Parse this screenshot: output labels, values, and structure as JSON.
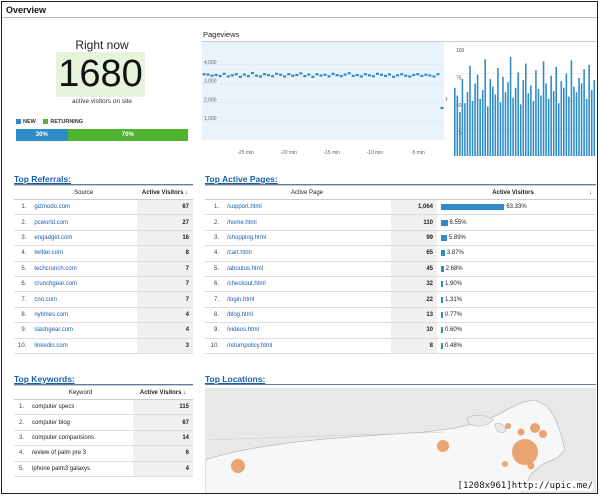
{
  "header": {
    "title": "Overview"
  },
  "right_now": {
    "title": "Right now",
    "count": "1680",
    "caption": "active visitors on site",
    "legend_new": "NEW",
    "legend_returning": "RETURNING",
    "new_pct_label": "30%",
    "returning_pct_label": "70%",
    "new_fraction": 0.3,
    "colors": {
      "new": "#2f8cc8",
      "returning": "#50b432"
    }
  },
  "pageviews": {
    "title": "Pageviews",
    "arrow": "›",
    "chart_data": [
      {
        "type": "line",
        "x_tick_labels": [
          "-25 min",
          "-20 min",
          "-15 min",
          "-10 min",
          "-5 min"
        ],
        "y_tick_labels": [
          "4,000",
          "3,000",
          "2,000",
          "1,000"
        ],
        "ylim": [
          0,
          5000
        ],
        "values": [
          3500,
          3480,
          3420,
          3460,
          3400,
          3520,
          3380,
          3440,
          3500,
          3360,
          3480,
          3400,
          3560,
          3420,
          3380,
          3500,
          3450,
          3390,
          3520,
          3470,
          3380,
          3500,
          3420,
          3460,
          3540,
          3400,
          3480,
          3360,
          3500,
          3430,
          3470,
          3390,
          3520,
          3450,
          3400,
          3480,
          3550,
          3410,
          3460,
          3380,
          3500,
          3440,
          3390,
          3520,
          3470,
          3410,
          3490,
          3360,
          3440,
          3500,
          3420,
          3380,
          3460,
          3500,
          3410,
          3470,
          3430,
          3380,
          3500,
          1700
        ]
      },
      {
        "type": "bar",
        "y_tick_labels": [
          "100",
          "75",
          "50",
          "25"
        ],
        "ylim": [
          0,
          100
        ],
        "values": [
          62,
          55,
          40,
          70,
          48,
          58,
          82,
          50,
          66,
          74,
          52,
          60,
          88,
          45,
          70,
          63,
          56,
          80,
          49,
          72,
          58,
          67,
          90,
          53,
          62,
          76,
          47,
          69,
          84,
          57,
          64,
          50,
          78,
          61,
          55,
          86,
          66,
          52,
          73,
          59,
          81,
          48,
          68,
          62,
          75,
          54,
          87,
          63,
          58,
          71,
          66,
          79,
          52,
          83,
          60,
          69
        ]
      }
    ]
  },
  "referrals": {
    "title": "Top Referrals:",
    "col_source": "Source",
    "col_visitors": "Active Visitors ↓",
    "rows": [
      {
        "n": "1.",
        "src": "gizmodo.com",
        "v": "67"
      },
      {
        "n": "2.",
        "src": "pcworld.com",
        "v": "27"
      },
      {
        "n": "3.",
        "src": "engadget.com",
        "v": "16"
      },
      {
        "n": "4.",
        "src": "twitter.com",
        "v": "8"
      },
      {
        "n": "5.",
        "src": "techcrunch.com",
        "v": "7"
      },
      {
        "n": "6.",
        "src": "crunchgear.com",
        "v": "7"
      },
      {
        "n": "7.",
        "src": "cnn.com",
        "v": "7"
      },
      {
        "n": "8.",
        "src": "nytimes.com",
        "v": "4"
      },
      {
        "n": "9.",
        "src": "slashgear.com",
        "v": "4"
      },
      {
        "n": "10.",
        "src": "linkedin.com",
        "v": "3"
      }
    ]
  },
  "active_pages": {
    "title": "Top Active Pages:",
    "col_page": "Active Page",
    "col_visitors": "Active Visitors",
    "sort_icon": "↓",
    "rows": [
      {
        "n": "1.",
        "page": "/support.html",
        "v": "1,064",
        "pct": "63.33%",
        "frac": 0.6333
      },
      {
        "n": "2.",
        "page": "/home.html",
        "v": "110",
        "pct": "6.55%",
        "frac": 0.0655
      },
      {
        "n": "3.",
        "page": "/shopping.html",
        "v": "99",
        "pct": "5.89%",
        "frac": 0.0589
      },
      {
        "n": "4.",
        "page": "/cart.html",
        "v": "65",
        "pct": "3.87%",
        "frac": 0.0387
      },
      {
        "n": "5.",
        "page": "/aboutus.html",
        "v": "45",
        "pct": "2.68%",
        "frac": 0.0268
      },
      {
        "n": "6.",
        "page": "/checkout.html",
        "v": "32",
        "pct": "1.90%",
        "frac": 0.019
      },
      {
        "n": "7.",
        "page": "/login.html",
        "v": "22",
        "pct": "1.31%",
        "frac": 0.0131
      },
      {
        "n": "8.",
        "page": "/blog.html",
        "v": "13",
        "pct": "0.77%",
        "frac": 0.0077
      },
      {
        "n": "9.",
        "page": "/videos.html",
        "v": "10",
        "pct": "0.60%",
        "frac": 0.006
      },
      {
        "n": "10.",
        "page": "/returnpolicy.html",
        "v": "8",
        "pct": "0.48%",
        "frac": 0.0048
      }
    ]
  },
  "keywords": {
    "title": "Top Keywords:",
    "col_keyword": "Keyword",
    "col_visitors": "Active Visitors ↓",
    "rows": [
      {
        "n": "1.",
        "kw": "computer specs",
        "v": "115"
      },
      {
        "n": "2.",
        "kw": "computer blog",
        "v": "67"
      },
      {
        "n": "3.",
        "kw": "computer comparisions",
        "v": "14"
      },
      {
        "n": "4.",
        "kw": "review of palm pre 3",
        "v": "6"
      },
      {
        "n": "5.",
        "kw": "iphone palm3 galaxys",
        "v": "4"
      }
    ]
  },
  "locations": {
    "title": "Top Locations:",
    "bubble_color": "#e8955a"
  },
  "watermark": "[1208x961]http://upic.me/"
}
